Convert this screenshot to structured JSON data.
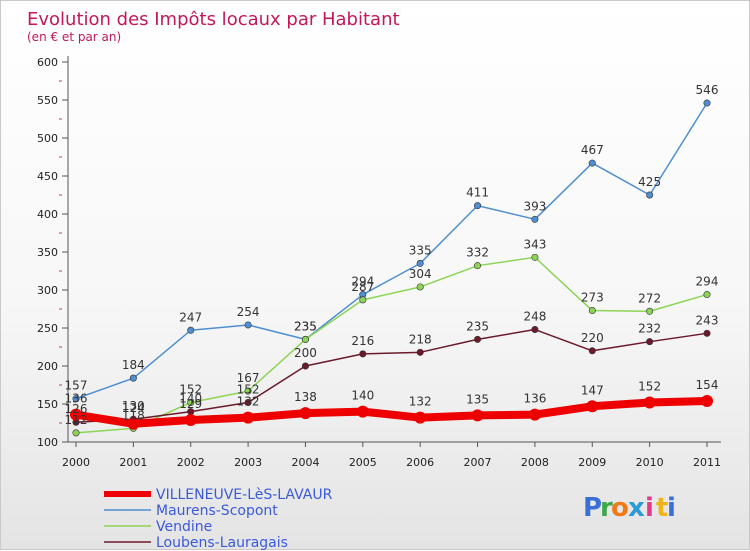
{
  "chart_data": {
    "type": "line",
    "title": "Evolution des Impôts locaux par Habitant",
    "subtitle": "(en € et par an)",
    "x": [
      "2000",
      "2001",
      "2002",
      "2003",
      "2004",
      "2005",
      "2006",
      "2007",
      "2008",
      "2009",
      "2010",
      "2011"
    ],
    "ylim": [
      100,
      600
    ],
    "yticks": [
      100,
      150,
      200,
      250,
      300,
      350,
      400,
      450,
      500,
      550,
      600
    ],
    "grid": false,
    "legend_position": "bottom-left",
    "series": [
      {
        "name": "VILLENEUVE-LèS-LAVAUR",
        "color": "#ee0000",
        "values": [
          136,
          124,
          129,
          132,
          138,
          140,
          132,
          135,
          136,
          147,
          152,
          154
        ]
      },
      {
        "name": "Maurens-Scopont",
        "color": "#4f8fd1",
        "values": [
          157,
          184,
          247,
          254,
          235,
          294,
          335,
          411,
          393,
          467,
          425,
          546
        ]
      },
      {
        "name": "Vendine",
        "color": "#8cd456",
        "values": [
          112,
          118,
          152,
          167,
          235,
          287,
          304,
          332,
          343,
          273,
          272,
          294
        ]
      },
      {
        "name": "Loubens-Lauragais",
        "color": "#6b1a2a",
        "values": [
          126,
          130,
          140,
          152,
          200,
          216,
          218,
          235,
          248,
          220,
          232,
          243
        ]
      }
    ],
    "brand": {
      "letters": [
        "P",
        "r",
        "o",
        "x",
        "i",
        "t",
        "i"
      ],
      "colors": [
        "#3b6fd8",
        "#3ca84a",
        "#f07a1a",
        "#2a9ad8",
        "#e33a8c",
        "#f0b31a",
        "#3b6fd8"
      ]
    }
  }
}
